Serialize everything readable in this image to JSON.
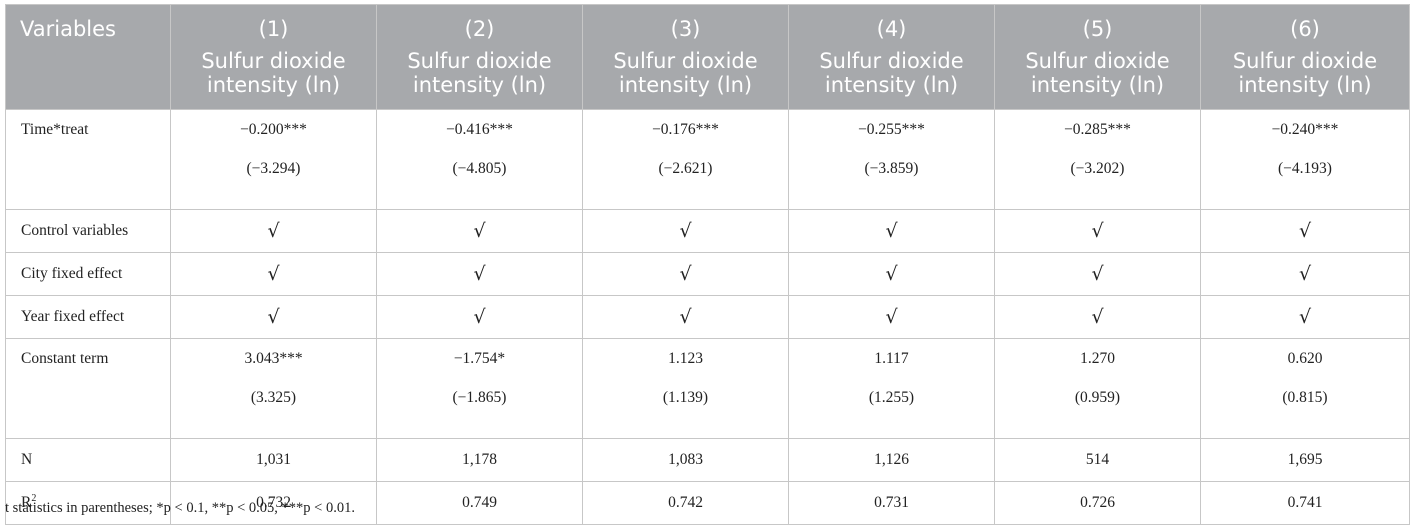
{
  "header": {
    "variables_label": "Variables",
    "columns": [
      {
        "num": "(1)",
        "line1": "Sulfur dioxide",
        "line2": "intensity (ln)"
      },
      {
        "num": "(2)",
        "line1": "Sulfur dioxide",
        "line2": "intensity (ln)"
      },
      {
        "num": "(3)",
        "line1": "Sulfur dioxide",
        "line2": "intensity (ln)"
      },
      {
        "num": "(4)",
        "line1": "Sulfur dioxide",
        "line2": "intensity (ln)"
      },
      {
        "num": "(5)",
        "line1": "Sulfur dioxide",
        "line2": "intensity (ln)"
      },
      {
        "num": "(6)",
        "line1": "Sulfur dioxide",
        "line2": "intensity (ln)"
      }
    ]
  },
  "rows": {
    "time_treat": {
      "label": "Time*treat",
      "coef": [
        "−0.200***",
        "−0.416***",
        "−0.176***",
        "−0.255***",
        "−0.285***",
        "−0.240***"
      ],
      "t": [
        "(−3.294)",
        "(−4.805)",
        "(−2.621)",
        "(−3.859)",
        "(−3.202)",
        "(−4.193)"
      ]
    },
    "control": {
      "label": "Control variables",
      "marks": [
        "√",
        "√",
        "√",
        "√",
        "√",
        "√"
      ]
    },
    "city_fe": {
      "label": "City fixed effect",
      "marks": [
        "√",
        "√",
        "√",
        "√",
        "√",
        "√"
      ]
    },
    "year_fe": {
      "label": "Year fixed effect",
      "marks": [
        "√",
        "√",
        "√",
        "√",
        "√",
        "√"
      ]
    },
    "constant": {
      "label": "Constant term",
      "coef": [
        "3.043***",
        "−1.754*",
        "1.123",
        "1.117",
        "1.270",
        "0.620"
      ],
      "t": [
        "(3.325)",
        "(−1.865)",
        "(1.139)",
        "(1.255)",
        "(0.959)",
        "(0.815)"
      ]
    },
    "n": {
      "label": "N",
      "values": [
        "1,031",
        "1,178",
        "1,083",
        "1,126",
        "514",
        "1,695"
      ]
    },
    "r2": {
      "label": "R",
      "label_sup": "2",
      "values": [
        "0.732",
        "0.749",
        "0.742",
        "0.731",
        "0.726",
        "0.741"
      ]
    }
  },
  "footnote": "t statistics in parentheses; *p < 0.1, **p < 0.05, ***p < 0.01.",
  "colors": {
    "header_bg": "#a7a9ac",
    "header_text": "#ffffff",
    "border": "#c7c7c7"
  }
}
